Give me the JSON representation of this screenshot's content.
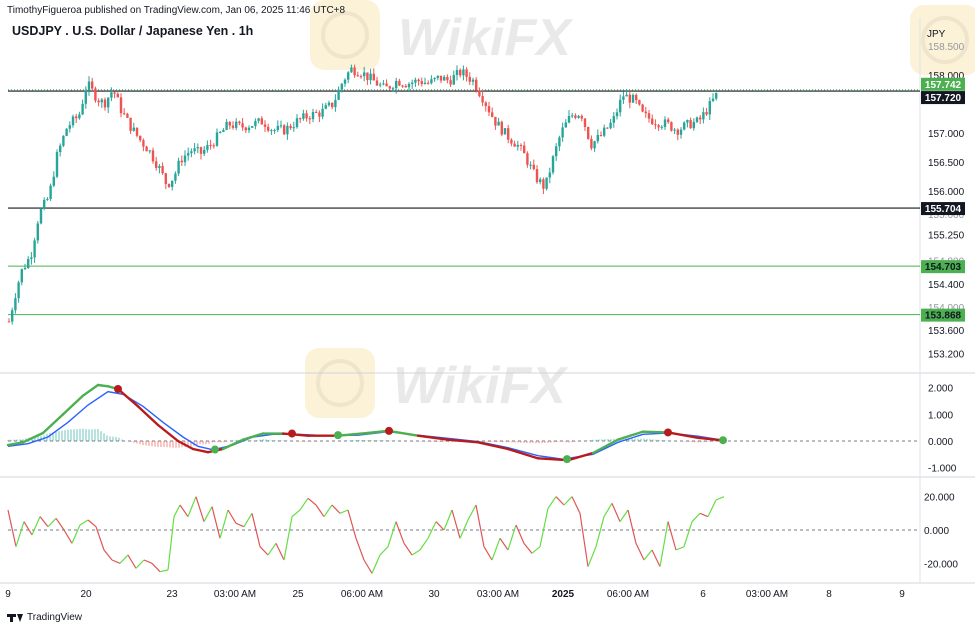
{
  "header": {
    "published_text": "TimothyFigueroa published on TradingView.com, Jan 06, 2025 11:46 UTC+8",
    "title": "USDJPY . U.S. Dollar / Japanese Yen . 1h",
    "currency": "JPY",
    "brand": "TradingView"
  },
  "watermark": {
    "text": "WikiFX"
  },
  "colors": {
    "up": "#26a69a",
    "down": "#ef5350",
    "signal_line": "#2962ff",
    "macd_up": "#4caf50",
    "macd_down": "#b71c1c",
    "osc_up": "#66dd44",
    "osc_down": "#e05555",
    "level_black": "#131722",
    "level_green": "#4caf50"
  },
  "chart_data": [
    {
      "type": "candlestick",
      "title": "USDJPY . U.S. Dollar / Japanese Yen . 1h",
      "y_unit": "JPY",
      "y_ticks": [
        "158.000",
        "157.000",
        "156.500",
        "156.000",
        "155.250",
        "154.400",
        "153.600",
        "153.200"
      ],
      "y_ticks_partial": [
        "158.500",
        "155.600",
        "154.800",
        "154.000"
      ],
      "ylim": [
        153.0,
        158.6
      ],
      "x_ticks": [
        "9",
        "20",
        "23",
        "03:00 AM",
        "25",
        "06:00 AM",
        "30",
        "03:00 AM",
        "2025",
        "06:00 AM",
        "6",
        "03:00 AM",
        "8",
        "9"
      ],
      "price_path": [
        [
          0,
          153.75
        ],
        [
          6,
          154.2
        ],
        [
          12,
          154.6
        ],
        [
          22,
          154.9
        ],
        [
          30,
          155.6
        ],
        [
          40,
          155.9
        ],
        [
          48,
          156.6
        ],
        [
          58,
          157.1
        ],
        [
          70,
          157.3
        ],
        [
          78,
          157.85
        ],
        [
          88,
          157.6
        ],
        [
          95,
          157.5
        ],
        [
          104,
          157.75
        ],
        [
          112,
          157.4
        ],
        [
          120,
          157.15
        ],
        [
          130,
          156.9
        ],
        [
          140,
          156.7
        ],
        [
          150,
          156.4
        ],
        [
          158,
          156.1
        ],
        [
          165,
          156.25
        ],
        [
          172,
          156.55
        ],
        [
          182,
          156.7
        ],
        [
          192,
          156.65
        ],
        [
          202,
          156.8
        ],
        [
          212,
          157.0
        ],
        [
          220,
          157.15
        ],
        [
          232,
          157.1
        ],
        [
          244,
          157.15
        ],
        [
          254,
          157.2
        ],
        [
          264,
          157.05
        ],
        [
          276,
          157.05
        ],
        [
          288,
          157.2
        ],
        [
          300,
          157.3
        ],
        [
          312,
          157.35
        ],
        [
          324,
          157.5
        ],
        [
          334,
          157.9
        ],
        [
          342,
          158.1
        ],
        [
          352,
          158.05
        ],
        [
          364,
          157.9
        ],
        [
          376,
          157.75
        ],
        [
          388,
          157.9
        ],
        [
          398,
          157.85
        ],
        [
          410,
          157.9
        ],
        [
          420,
          157.85
        ],
        [
          430,
          157.95
        ],
        [
          440,
          157.9
        ],
        [
          452,
          158.05
        ],
        [
          464,
          157.9
        ],
        [
          474,
          157.6
        ],
        [
          486,
          157.2
        ],
        [
          498,
          156.95
        ],
        [
          508,
          156.8
        ],
        [
          516,
          156.6
        ],
        [
          526,
          156.25
        ],
        [
          536,
          156.05
        ],
        [
          544,
          156.55
        ],
        [
          552,
          157.0
        ],
        [
          562,
          157.3
        ],
        [
          572,
          157.35
        ],
        [
          582,
          156.8
        ],
        [
          592,
          156.95
        ],
        [
          604,
          157.2
        ],
        [
          614,
          157.65
        ],
        [
          626,
          157.55
        ],
        [
          634,
          157.3
        ],
        [
          646,
          157.2
        ],
        [
          658,
          157.15
        ],
        [
          668,
          157.05
        ],
        [
          680,
          157.15
        ],
        [
          690,
          157.2
        ],
        [
          700,
          157.45
        ],
        [
          710,
          157.72
        ]
      ],
      "levels": [
        {
          "label": "157.742",
          "value": 157.742,
          "kind": "current",
          "color": "#4caf50"
        },
        {
          "label": "157.720",
          "value": 157.72,
          "kind": "black",
          "color": "#131722"
        },
        {
          "label": "155.704",
          "value": 155.704,
          "kind": "black",
          "color": "#131722"
        },
        {
          "label": "154.703",
          "value": 154.703,
          "kind": "green",
          "color": "#4caf50"
        },
        {
          "label": "153.868",
          "value": 153.868,
          "kind": "green",
          "color": "#4caf50"
        }
      ]
    },
    {
      "type": "line",
      "panel": "macd",
      "y_ticks": [
        "2.000",
        "1.000",
        "0.000",
        "-1.000"
      ],
      "ylim": [
        -1.2,
        2.4
      ],
      "series": [
        {
          "values": [
            [
              0,
              -0.15
            ],
            [
              15,
              -0.05
            ],
            [
              35,
              0.3
            ],
            [
              55,
              1.0
            ],
            [
              75,
              1.7
            ],
            [
              90,
              2.1
            ],
            [
              100,
              2.05
            ],
            [
              110,
              1.95
            ],
            [
              130,
              1.3
            ],
            [
              150,
              0.6
            ],
            [
              170,
              0.0
            ],
            [
              185,
              -0.3
            ],
            [
              200,
              -0.42
            ],
            [
              215,
              -0.3
            ],
            [
              235,
              0.05
            ],
            [
              255,
              0.28
            ],
            [
              275,
              0.28
            ],
            [
              300,
              0.2
            ],
            [
              330,
              0.2
            ],
            [
              360,
              0.3
            ],
            [
              380,
              0.38
            ],
            [
              410,
              0.2
            ],
            [
              440,
              0.05
            ],
            [
              470,
              -0.05
            ],
            [
              500,
              -0.3
            ],
            [
              530,
              -0.65
            ],
            [
              560,
              -0.72
            ],
            [
              585,
              -0.45
            ],
            [
              610,
              0.05
            ],
            [
              635,
              0.35
            ],
            [
              660,
              0.32
            ],
            [
              690,
              0.12
            ],
            [
              715,
              0.02
            ]
          ]
        },
        {
          "values": [
            [
              0,
              -0.2
            ],
            [
              20,
              -0.1
            ],
            [
              40,
              0.15
            ],
            [
              60,
              0.7
            ],
            [
              80,
              1.35
            ],
            [
              100,
              1.85
            ],
            [
              115,
              1.75
            ],
            [
              135,
              1.3
            ],
            [
              155,
              0.7
            ],
            [
              175,
              0.15
            ],
            [
              190,
              -0.2
            ],
            [
              205,
              -0.33
            ],
            [
              225,
              -0.15
            ],
            [
              245,
              0.15
            ],
            [
              265,
              0.25
            ],
            [
              290,
              0.25
            ],
            [
              320,
              0.2
            ],
            [
              350,
              0.22
            ],
            [
              380,
              0.35
            ],
            [
              410,
              0.22
            ],
            [
              440,
              0.1
            ],
            [
              470,
              -0.02
            ],
            [
              500,
              -0.25
            ],
            [
              530,
              -0.55
            ],
            [
              555,
              -0.68
            ],
            [
              585,
              -0.5
            ],
            [
              610,
              -0.05
            ],
            [
              635,
              0.25
            ],
            [
              660,
              0.3
            ],
            [
              690,
              0.18
            ],
            [
              715,
              0.03
            ]
          ]
        }
      ],
      "crossover_markers": [
        {
          "x": 110,
          "y": 1.95,
          "kind": "bearish"
        },
        {
          "x": 207,
          "y": -0.32,
          "kind": "bullish"
        },
        {
          "x": 284,
          "y": 0.28,
          "kind": "bearish"
        },
        {
          "x": 330,
          "y": 0.22,
          "kind": "bullish"
        },
        {
          "x": 381,
          "y": 0.38,
          "kind": "bearish"
        },
        {
          "x": 559,
          "y": -0.68,
          "kind": "bullish"
        },
        {
          "x": 660,
          "y": 0.32,
          "kind": "bearish"
        },
        {
          "x": 715,
          "y": 0.03,
          "kind": "bullish"
        }
      ],
      "histogram_note": "small bars around zero line"
    },
    {
      "type": "line",
      "panel": "oscillator",
      "y_ticks": [
        "20.000",
        "0.000",
        "-20.000"
      ],
      "ylim": [
        -30,
        30
      ],
      "series": [
        {
          "values": [
            [
              0,
              12
            ],
            [
              8,
              -10
            ],
            [
              16,
              5
            ],
            [
              24,
              -3
            ],
            [
              32,
              8
            ],
            [
              40,
              2
            ],
            [
              48,
              7
            ],
            [
              56,
              0
            ],
            [
              64,
              -8
            ],
            [
              72,
              3
            ],
            [
              80,
              6
            ],
            [
              88,
              2
            ],
            [
              96,
              -12
            ],
            [
              104,
              -18
            ],
            [
              112,
              -20
            ],
            [
              120,
              -15
            ],
            [
              128,
              -23
            ],
            [
              136,
              -18
            ],
            [
              144,
              -20
            ],
            [
              152,
              -25
            ],
            [
              160,
              -24
            ],
            [
              166,
              8
            ],
            [
              172,
              15
            ],
            [
              180,
              8
            ],
            [
              188,
              20
            ],
            [
              196,
              5
            ],
            [
              204,
              14
            ],
            [
              212,
              -5
            ],
            [
              220,
              12
            ],
            [
              228,
              4
            ],
            [
              236,
              2
            ],
            [
              244,
              10
            ],
            [
              252,
              -10
            ],
            [
              260,
              -15
            ],
            [
              268,
              -8
            ],
            [
              276,
              -18
            ],
            [
              284,
              8
            ],
            [
              292,
              12
            ],
            [
              300,
              19
            ],
            [
              308,
              15
            ],
            [
              316,
              8
            ],
            [
              324,
              15
            ],
            [
              332,
              10
            ],
            [
              340,
              12
            ],
            [
              348,
              -5
            ],
            [
              356,
              -18
            ],
            [
              364,
              -26
            ],
            [
              372,
              -15
            ],
            [
              380,
              -10
            ],
            [
              388,
              5
            ],
            [
              396,
              -8
            ],
            [
              404,
              -15
            ],
            [
              412,
              -12
            ],
            [
              420,
              -5
            ],
            [
              428,
              5
            ],
            [
              436,
              0
            ],
            [
              444,
              12
            ],
            [
              452,
              -5
            ],
            [
              460,
              6
            ],
            [
              468,
              15
            ],
            [
              476,
              -10
            ],
            [
              484,
              -18
            ],
            [
              492,
              -5
            ],
            [
              500,
              -12
            ],
            [
              508,
              3
            ],
            [
              516,
              -8
            ],
            [
              524,
              -14
            ],
            [
              532,
              -10
            ],
            [
              540,
              13
            ],
            [
              548,
              20
            ],
            [
              556,
              15
            ],
            [
              564,
              20
            ],
            [
              572,
              10
            ],
            [
              580,
              -22
            ],
            [
              588,
              -10
            ],
            [
              596,
              8
            ],
            [
              604,
              16
            ],
            [
              612,
              5
            ],
            [
              620,
              12
            ],
            [
              628,
              -8
            ],
            [
              636,
              -18
            ],
            [
              644,
              -12
            ],
            [
              652,
              -22
            ],
            [
              660,
              5
            ],
            [
              668,
              -12
            ],
            [
              676,
              -10
            ],
            [
              684,
              5
            ],
            [
              692,
              10
            ],
            [
              700,
              8
            ],
            [
              708,
              18
            ],
            [
              716,
              20
            ]
          ]
        }
      ]
    }
  ]
}
